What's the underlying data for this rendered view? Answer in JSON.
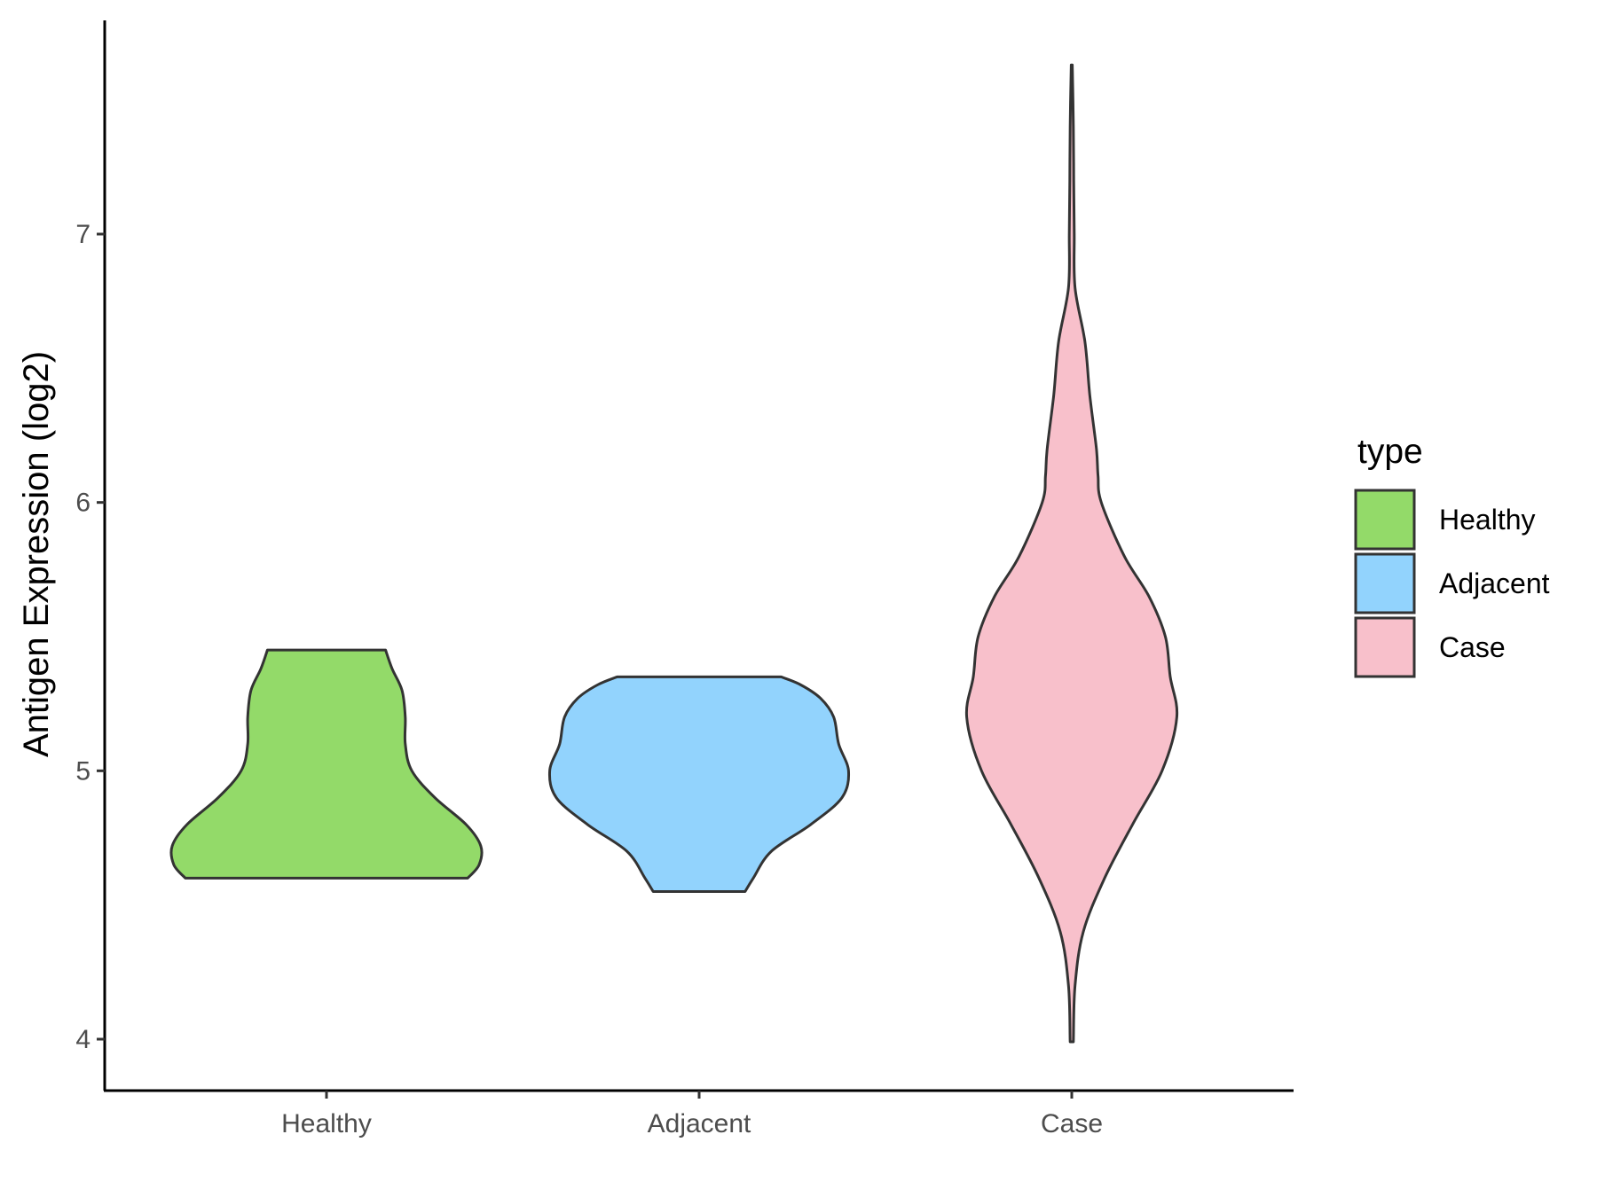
{
  "chart_data": {
    "type": "violin",
    "ylabel": "Antigen Expression (log2)",
    "xlabel": "",
    "y_ticks": [
      4,
      5,
      6,
      7
    ],
    "ylim": [
      3.8,
      7.8
    ],
    "categories": [
      "Healthy",
      "Adjacent",
      "Case"
    ],
    "legend": {
      "title": "type",
      "position": "right",
      "entries": [
        "Healthy",
        "Adjacent",
        "Case"
      ]
    },
    "series": [
      {
        "name": "Healthy",
        "color": "#93DA69",
        "min": 4.6,
        "max": 5.45,
        "density": [
          [
            4.6,
            0.86
          ],
          [
            4.65,
            0.93
          ],
          [
            4.72,
            0.94
          ],
          [
            4.8,
            0.85
          ],
          [
            4.9,
            0.66
          ],
          [
            5.0,
            0.52
          ],
          [
            5.1,
            0.48
          ],
          [
            5.2,
            0.48
          ],
          [
            5.3,
            0.46
          ],
          [
            5.38,
            0.4
          ],
          [
            5.45,
            0.36
          ]
        ]
      },
      {
        "name": "Adjacent",
        "color": "#92D3FD",
        "min": 4.55,
        "max": 5.35,
        "density": [
          [
            4.55,
            0.28
          ],
          [
            4.6,
            0.33
          ],
          [
            4.7,
            0.44
          ],
          [
            4.8,
            0.68
          ],
          [
            4.9,
            0.87
          ],
          [
            5.0,
            0.91
          ],
          [
            5.1,
            0.85
          ],
          [
            5.2,
            0.82
          ],
          [
            5.27,
            0.74
          ],
          [
            5.32,
            0.62
          ],
          [
            5.35,
            0.5
          ]
        ]
      },
      {
        "name": "Case",
        "color": "#F8C0CB",
        "min": 3.99,
        "max": 7.63,
        "density": [
          [
            3.99,
            0.01
          ],
          [
            4.2,
            0.02
          ],
          [
            4.4,
            0.07
          ],
          [
            4.6,
            0.2
          ],
          [
            4.8,
            0.37
          ],
          [
            5.0,
            0.55
          ],
          [
            5.2,
            0.64
          ],
          [
            5.35,
            0.6
          ],
          [
            5.5,
            0.57
          ],
          [
            5.65,
            0.47
          ],
          [
            5.8,
            0.32
          ],
          [
            6.0,
            0.18
          ],
          [
            6.1,
            0.16
          ],
          [
            6.2,
            0.15
          ],
          [
            6.4,
            0.11
          ],
          [
            6.6,
            0.08
          ],
          [
            6.8,
            0.02
          ],
          [
            7.0,
            0.015
          ],
          [
            7.2,
            0.012
          ],
          [
            7.4,
            0.01
          ],
          [
            7.63,
            0.003
          ]
        ]
      }
    ]
  }
}
